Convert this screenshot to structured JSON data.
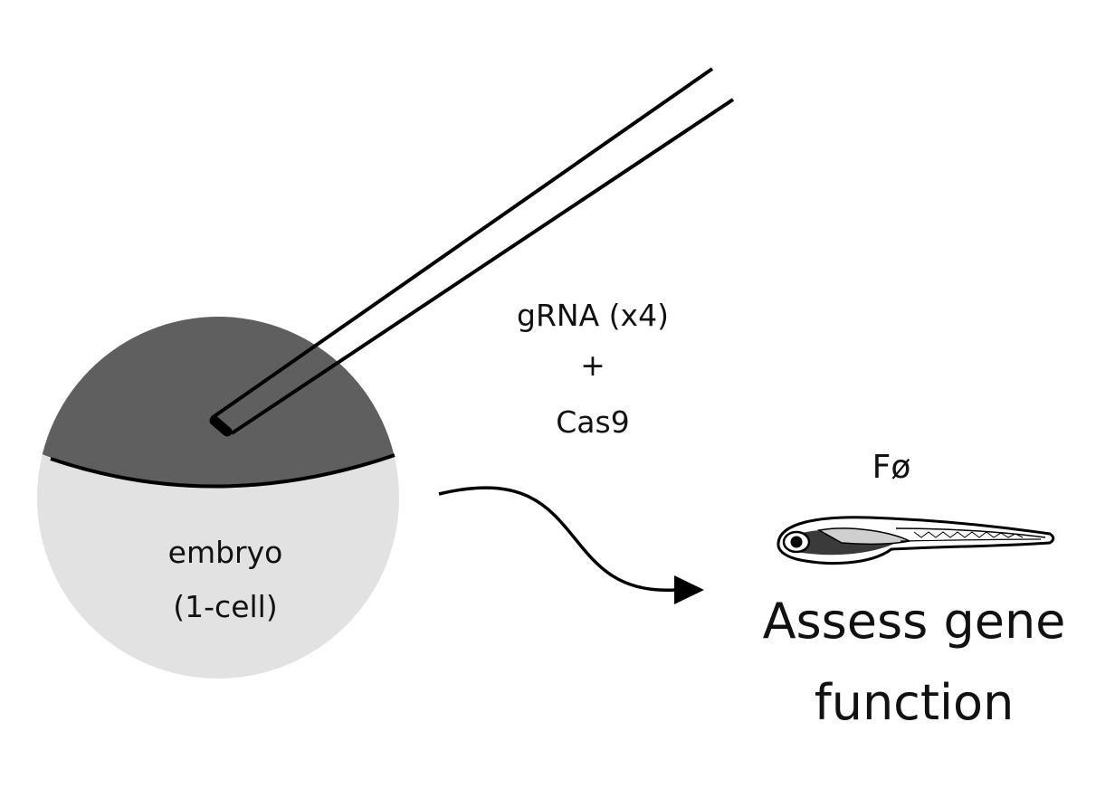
{
  "labels": {
    "injection_mix": [
      "gRNA (x4)",
      "+",
      "Cas9"
    ],
    "embryo": [
      "embryo",
      "(1-cell)"
    ],
    "generation": "Fø",
    "outcome": [
      "Assess gene",
      "function"
    ]
  },
  "colors": {
    "cytoplasm": "#5f5f5f",
    "yolk": "#e2e2e2",
    "stroke": "#000000",
    "text": "#111111",
    "background": "#ffffff"
  },
  "icons": [
    "micropipette-icon",
    "zebrafish-larva-icon",
    "curved-arrow-icon"
  ]
}
